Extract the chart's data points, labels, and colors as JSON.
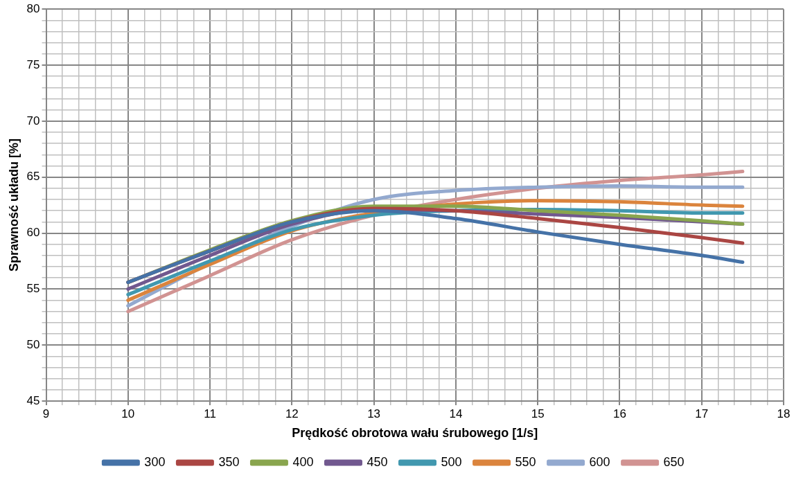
{
  "chart_data": {
    "type": "line",
    "xlabel": "Prędkość obrotowa wału śrubowego [1/s]",
    "ylabel": "Sprawność układu [%]",
    "x": [
      10,
      11,
      12,
      13,
      14,
      15,
      16,
      17,
      17.5
    ],
    "series": [
      {
        "name": "300",
        "color": "#4572a7",
        "values": [
          55.6,
          58.4,
          61,
          62,
          61.3,
          60.1,
          59,
          58,
          57.4
        ]
      },
      {
        "name": "350",
        "color": "#aa4643",
        "values": [
          55.6,
          58.4,
          61,
          62.2,
          62,
          61.3,
          60.5,
          59.6,
          59.1
        ]
      },
      {
        "name": "400",
        "color": "#89a54e",
        "values": [
          55.6,
          58.5,
          61.1,
          62.4,
          62.4,
          62,
          61.6,
          61.1,
          60.8
        ]
      },
      {
        "name": "450",
        "color": "#71588f",
        "values": [
          55,
          58,
          60.8,
          62.1,
          62,
          61.7,
          61.4,
          61,
          60.8
        ]
      },
      {
        "name": "500",
        "color": "#4198af",
        "values": [
          54.5,
          57.5,
          60.3,
          61.6,
          62,
          62.1,
          62,
          61.8,
          61.8
        ]
      },
      {
        "name": "550",
        "color": "#db843d",
        "values": [
          54,
          57.2,
          60.2,
          61.8,
          62.6,
          62.9,
          62.8,
          62.5,
          62.4
        ]
      },
      {
        "name": "600",
        "color": "#93a9cf",
        "values": [
          53.5,
          57.3,
          60.6,
          63,
          63.8,
          64.1,
          64.2,
          64.1,
          64.1
        ]
      },
      {
        "name": "650",
        "color": "#d19392",
        "values": [
          53,
          56.2,
          59.4,
          61.6,
          63,
          64,
          64.7,
          65.2,
          65.5
        ]
      }
    ],
    "xlim": [
      9,
      18
    ],
    "xticks": [
      9,
      {
        "value": 9.2,
        "label": null
      },
      {
        "value": 9.4,
        "label": null
      },
      {
        "value": 9.6,
        "label": null
      },
      {
        "value": 9.8,
        "label": null
      },
      10,
      {
        "value": 10.2,
        "label": null
      },
      {
        "value": 10.4,
        "label": null
      },
      {
        "value": 10.6,
        "label": null
      },
      {
        "value": 10.8,
        "label": null
      },
      11,
      {
        "value": 11.2,
        "label": null
      },
      {
        "value": 11.4,
        "label": null
      },
      {
        "value": 11.6,
        "label": null
      },
      {
        "value": 11.8,
        "label": null
      },
      12,
      {
        "value": 12.2,
        "label": null
      },
      {
        "value": 12.4,
        "label": null
      },
      {
        "value": 12.6,
        "label": null
      },
      {
        "value": 12.8,
        "label": null
      },
      13,
      {
        "value": 13.2,
        "label": null
      },
      {
        "value": 13.4,
        "label": null
      },
      {
        "value": 13.6,
        "label": null
      },
      {
        "value": 13.8,
        "label": null
      },
      14,
      {
        "value": 14.2,
        "label": null
      },
      {
        "value": 14.4,
        "label": null
      },
      {
        "value": 14.6,
        "label": null
      },
      {
        "value": 14.8,
        "label": null
      },
      15,
      {
        "value": 15.2,
        "label": null
      },
      {
        "value": 15.4,
        "label": null
      },
      {
        "value": 15.6,
        "label": null
      },
      {
        "value": 15.8,
        "label": null
      },
      16,
      {
        "value": 16.2,
        "label": null
      },
      {
        "value": 16.4,
        "label": null
      },
      {
        "value": 16.6,
        "label": null
      },
      {
        "value": 16.8,
        "label": null
      },
      17,
      {
        "value": 17.2,
        "label": null
      },
      {
        "value": 17.4,
        "label": null
      },
      {
        "value": 17.6,
        "label": null
      },
      {
        "value": 17.8,
        "label": null
      },
      18
    ],
    "ylim": [
      45,
      80
    ],
    "yticks": [
      45,
      {
        "value": 46,
        "label": null
      },
      {
        "value": 47,
        "label": null
      },
      {
        "value": 48,
        "label": null
      },
      {
        "value": 49,
        "label": null
      },
      50,
      {
        "value": 51,
        "label": null
      },
      {
        "value": 52,
        "label": null
      },
      {
        "value": 53,
        "label": null
      },
      {
        "value": 54,
        "label": null
      },
      55,
      {
        "value": 56,
        "label": null
      },
      {
        "value": 57,
        "label": null
      },
      {
        "value": 58,
        "label": null
      },
      {
        "value": 59,
        "label": null
      },
      60,
      {
        "value": 61,
        "label": null
      },
      {
        "value": 62,
        "label": null
      },
      {
        "value": 63,
        "label": null
      },
      {
        "value": 64,
        "label": null
      },
      65,
      {
        "value": 66,
        "label": null
      },
      {
        "value": 67,
        "label": null
      },
      {
        "value": 68,
        "label": null
      },
      {
        "value": 69,
        "label": null
      },
      70,
      {
        "value": 71,
        "label": null
      },
      {
        "value": 72,
        "label": null
      },
      {
        "value": 73,
        "label": null
      },
      {
        "value": 74,
        "label": null
      },
      75,
      {
        "value": 76,
        "label": null
      },
      {
        "value": 77,
        "label": null
      },
      {
        "value": 78,
        "label": null
      },
      {
        "value": 79,
        "label": null
      },
      80
    ],
    "grid": true,
    "legend": "bottom",
    "marker": "none",
    "line_style": "solid"
  }
}
